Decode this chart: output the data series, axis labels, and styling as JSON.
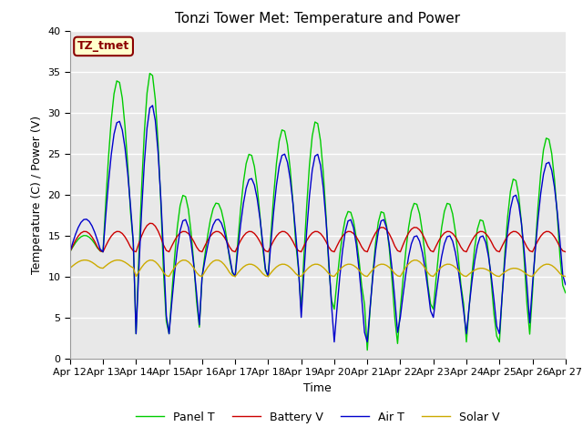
{
  "title": "Tonzi Tower Met: Temperature and Power",
  "xlabel": "Time",
  "ylabel": "Temperature (C) / Power (V)",
  "annotation": "TZ_tmet",
  "ylim": [
    0,
    40
  ],
  "series": {
    "Panel T": {
      "color": "#00cc00",
      "label": "Panel T"
    },
    "Battery V": {
      "color": "#cc0000",
      "label": "Battery V"
    },
    "Air T": {
      "color": "#0000cc",
      "label": "Air T"
    },
    "Solar V": {
      "color": "#ccaa00",
      "label": "Solar V"
    }
  },
  "bg_color": "#e8e8e8",
  "title_fontsize": 11,
  "axis_fontsize": 9,
  "tick_fontsize": 8
}
